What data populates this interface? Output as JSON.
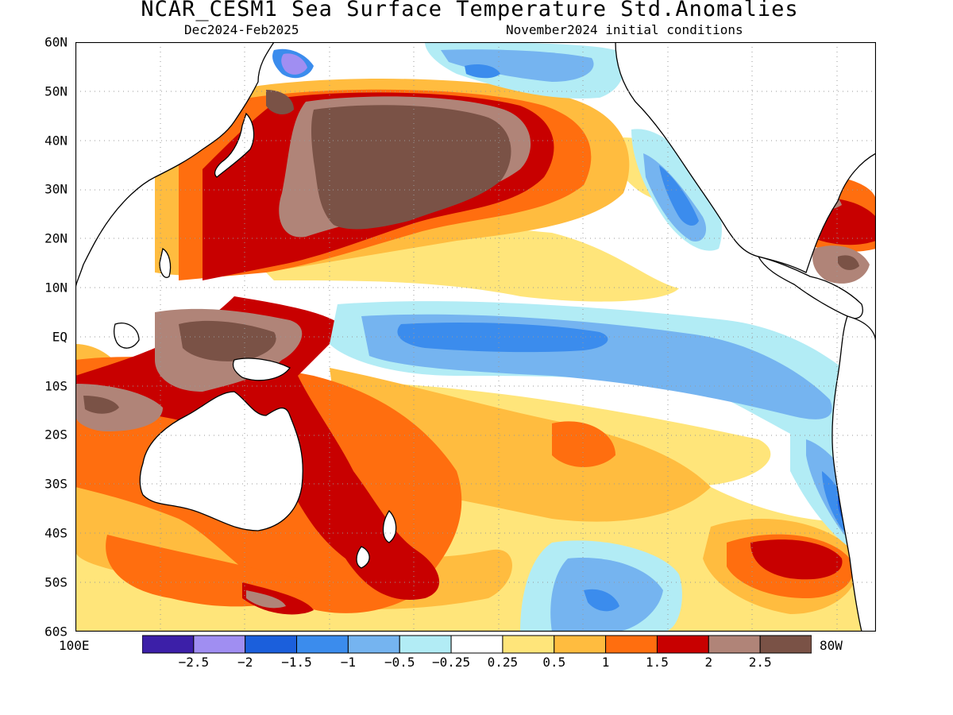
{
  "title": "NCAR_CESM1 Sea Surface Temperature Std.Anomalies",
  "subtitle_left": "Dec2024-Feb2025",
  "subtitle_right": "November2024 initial conditions",
  "lat_labels": [
    "60N",
    "50N",
    "40N",
    "30N",
    "20N",
    "10N",
    "EQ",
    "10S",
    "20S",
    "30S",
    "40S",
    "50S",
    "60S"
  ],
  "lon_labels": {
    "west": "100E",
    "east": "80W"
  },
  "colorbar": {
    "colors": [
      "#3c1fa8",
      "#a08ef2",
      "#1b5fdc",
      "#3b8ced",
      "#75b4f0",
      "#b2ecf5",
      "#ffffff",
      "#ffe57a",
      "#ffbc3f",
      "#ff6e0f",
      "#c80000",
      "#b08478",
      "#7a5246"
    ],
    "labels": [
      "-2.5",
      "-2",
      "-1.5",
      "-1",
      "-0.5",
      "-0.25",
      "0.25",
      "0.5",
      "1",
      "1.5",
      "2",
      "2.5"
    ]
  }
}
